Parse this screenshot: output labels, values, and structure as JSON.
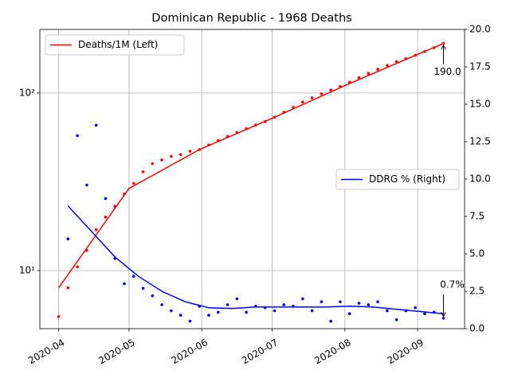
{
  "chart_data": {
    "type": "scatter",
    "title": "Dominican Republic - 1968 Deaths",
    "x": [
      "2020-04-01",
      "2020-04-05",
      "2020-04-09",
      "2020-04-13",
      "2020-04-17",
      "2020-04-21",
      "2020-04-25",
      "2020-04-29",
      "2020-05-03",
      "2020-05-07",
      "2020-05-11",
      "2020-05-15",
      "2020-05-19",
      "2020-05-23",
      "2020-05-27",
      "2020-05-31",
      "2020-06-04",
      "2020-06-08",
      "2020-06-12",
      "2020-06-16",
      "2020-06-20",
      "2020-06-24",
      "2020-06-28",
      "2020-07-02",
      "2020-07-06",
      "2020-07-10",
      "2020-07-14",
      "2020-07-18",
      "2020-07-22",
      "2020-07-26",
      "2020-07-30",
      "2020-08-03",
      "2020-08-07",
      "2020-08-11",
      "2020-08-15",
      "2020-08-19",
      "2020-08-23",
      "2020-08-27",
      "2020-08-31",
      "2020-09-04",
      "2020-09-08",
      "2020-09-12"
    ],
    "xlim": [
      "2020-03-24",
      "2020-09-21"
    ],
    "xticks": [
      {
        "value": "2020-04-01",
        "label": "2020-04"
      },
      {
        "value": "2020-05-01",
        "label": "2020-05"
      },
      {
        "value": "2020-06-01",
        "label": "2020-06"
      },
      {
        "value": "2020-07-01",
        "label": "2020-07"
      },
      {
        "value": "2020-08-01",
        "label": "2020-08"
      },
      {
        "value": "2020-09-01",
        "label": "2020-09"
      }
    ],
    "ylim": [
      4.71,
      228
    ],
    "yscale": "log",
    "yticks": [
      {
        "value": 10,
        "label": "10¹"
      },
      {
        "value": 100,
        "label": "10²"
      }
    ],
    "y2lim": [
      0,
      20
    ],
    "y2ticks": [
      {
        "value": 0,
        "label": "0.0"
      },
      {
        "value": 2.5,
        "label": "2.5"
      },
      {
        "value": 5,
        "label": "5.0"
      },
      {
        "value": 7.5,
        "label": "7.5"
      },
      {
        "value": 10,
        "label": "10.0"
      },
      {
        "value": 12.5,
        "label": "12.5"
      },
      {
        "value": 15,
        "label": "15.0"
      },
      {
        "value": 17.5,
        "label": "17.5"
      },
      {
        "value": 20,
        "label": "20.0"
      }
    ],
    "grid": true,
    "series": [
      {
        "kind": "points",
        "color": "#ff0000",
        "axis": "y",
        "values": [
          5.5,
          8,
          10.5,
          13,
          17,
          20,
          23,
          27,
          31,
          36,
          40,
          42,
          44,
          45,
          47,
          48,
          51,
          54,
          57,
          60,
          63,
          66,
          69,
          73,
          78,
          83,
          89,
          94,
          99,
          104,
          109,
          115,
          122,
          129,
          136,
          143,
          150,
          156,
          163,
          171,
          180,
          190
        ]
      },
      {
        "kind": "points",
        "color": "#0000ff",
        "axis": "y2",
        "values": [
          null,
          6.0,
          12.9,
          9.6,
          13.6,
          8.7,
          4.7,
          3.0,
          3.5,
          2.7,
          2.2,
          1.6,
          1.2,
          0.9,
          0.5,
          1.5,
          0.9,
          1.1,
          1.6,
          2.0,
          1.1,
          1.5,
          1.4,
          1.2,
          1.6,
          1.5,
          2.0,
          1.2,
          1.8,
          0.5,
          1.8,
          1.0,
          1.7,
          1.6,
          1.8,
          1.2,
          0.6,
          1.2,
          1.4,
          1.0,
          1.1,
          0.7
        ]
      },
      {
        "kind": "line",
        "name": "Deaths/1M (Left)",
        "color": "#ff0000",
        "axis": "y",
        "legend_loc": "upper left",
        "x": [
          "2020-04-01",
          "2020-05-01",
          "2020-05-31",
          "2020-07-01",
          "2020-08-01",
          "2020-09-01",
          "2020-09-12"
        ],
        "values": [
          8,
          29,
          48,
          72,
          110,
          165,
          190
        ]
      },
      {
        "kind": "line",
        "name": "DDRG % (Right)",
        "color": "#0000ff",
        "axis": "y2",
        "legend_loc": "center right",
        "x": [
          "2020-04-05",
          "2020-04-15",
          "2020-04-25",
          "2020-05-05",
          "2020-05-15",
          "2020-05-25",
          "2020-06-04",
          "2020-06-14",
          "2020-06-24",
          "2020-07-04",
          "2020-07-14",
          "2020-07-24",
          "2020-08-03",
          "2020-08-13",
          "2020-08-23",
          "2020-09-02",
          "2020-09-12"
        ],
        "values": [
          8.2,
          6.5,
          4.8,
          3.5,
          2.5,
          1.8,
          1.4,
          1.35,
          1.45,
          1.45,
          1.45,
          1.45,
          1.5,
          1.45,
          1.3,
          1.15,
          1.0
        ]
      }
    ],
    "annotations": [
      {
        "text": "190.0",
        "series": 0
      },
      {
        "text": "0.7%",
        "series": 1
      }
    ]
  }
}
